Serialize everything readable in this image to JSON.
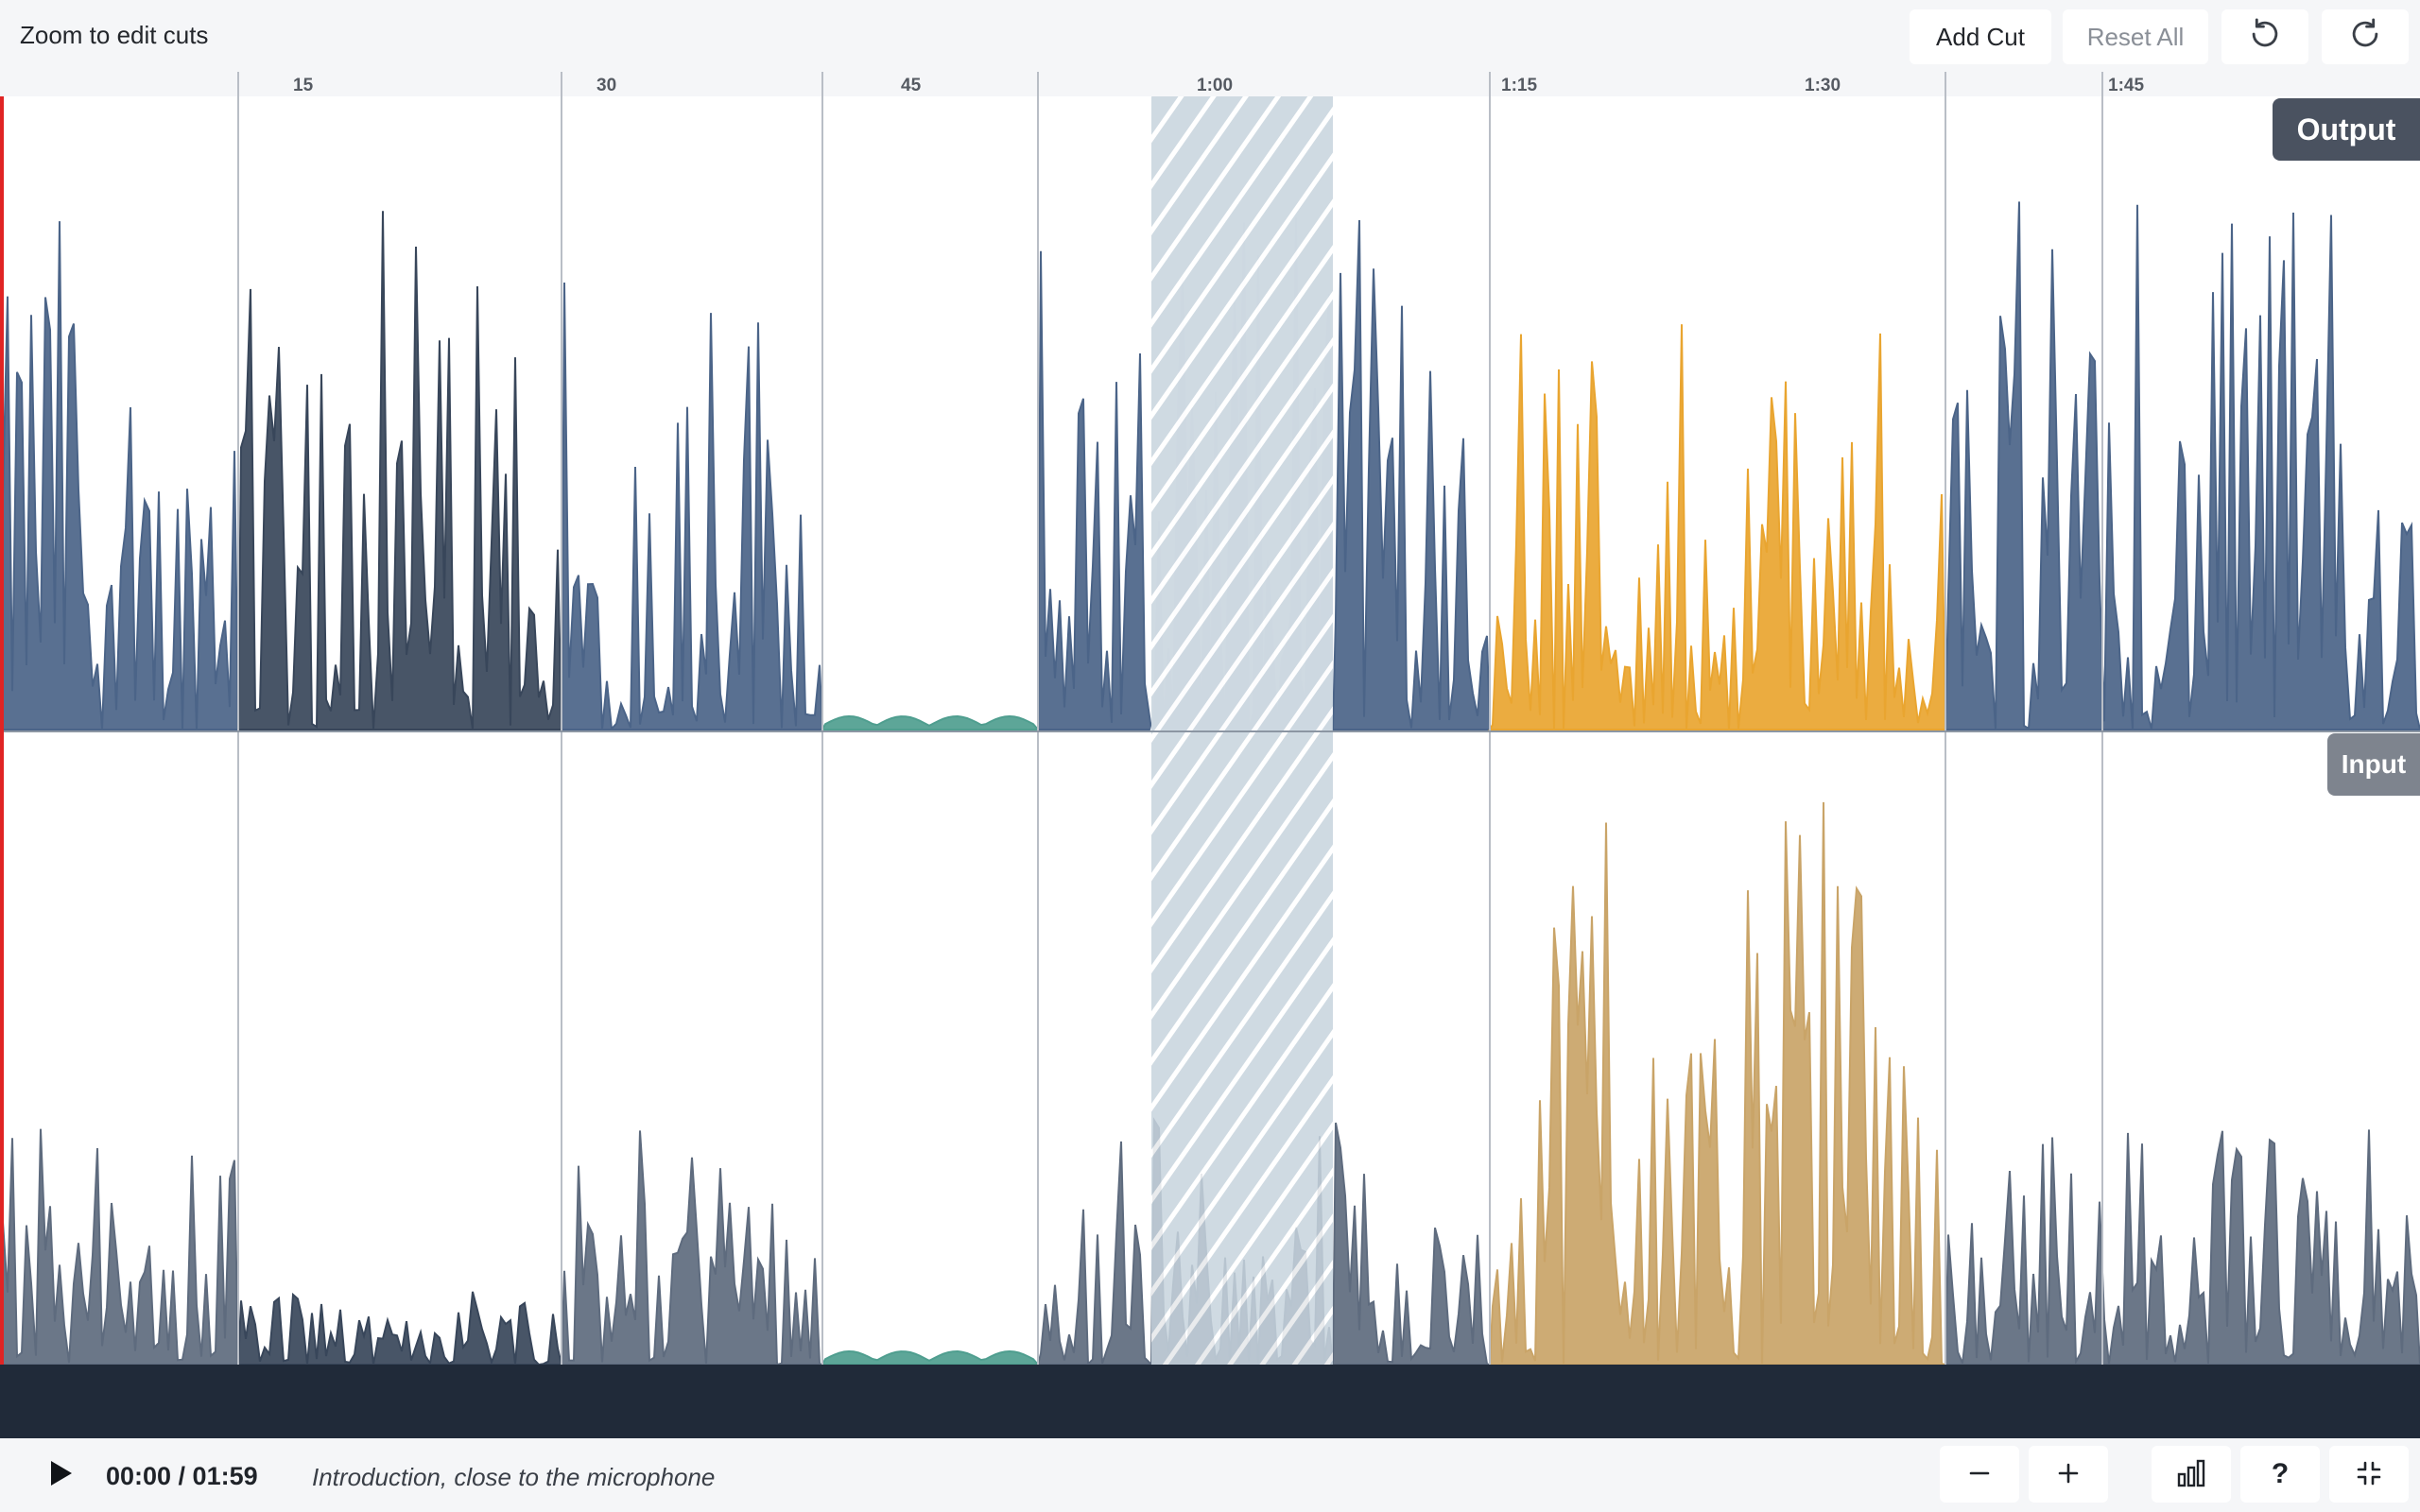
{
  "toolbar": {
    "hint": "Zoom to edit cuts",
    "add_cut_label": "Add Cut",
    "reset_all_label": "Reset All",
    "undo_icon": "undo-icon",
    "redo_icon": "redo-icon"
  },
  "ruler": {
    "ticks": [
      "15",
      "30",
      "45",
      "1:00",
      "1:15",
      "1:30",
      "1:45"
    ]
  },
  "tracks": {
    "output_label": "Output",
    "input_label": "Input"
  },
  "player": {
    "time": "00:00 / 01:59",
    "caption": "Introduction, close to the microphone"
  },
  "colors": {
    "wave_blue": "#4b6488",
    "wave_dark": "#38465a",
    "wave_gray": "#5e6b7e",
    "wave_teal": "#4f9e8f",
    "wave_orange": "#e9a530",
    "wave_tan": "#c9a468",
    "cut_region": "#c7d3dd",
    "playhead": "#e02424",
    "bottom_bar": "#202a39"
  }
}
